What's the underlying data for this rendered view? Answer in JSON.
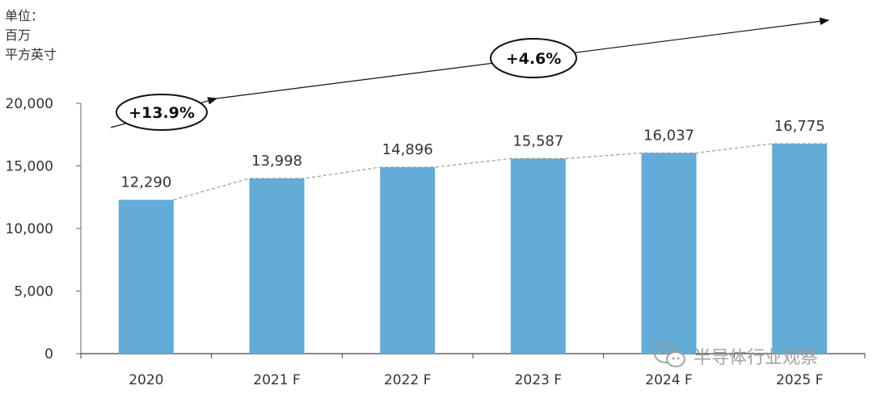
{
  "unit_label": [
    "单位：",
    "百万",
    "平方英寸"
  ],
  "watermark": {
    "text": "半导体行业观察",
    "icon": "wechat-icon"
  },
  "chart_data": {
    "type": "bar",
    "title": "",
    "xlabel": "",
    "ylabel": "",
    "categories": [
      "2020",
      "2021 F",
      "2022 F",
      "2023 F",
      "2024 F",
      "2025 F"
    ],
    "values": [
      12290,
      13998,
      14896,
      15587,
      16037,
      16775
    ],
    "value_labels": [
      "12,290",
      "13,998",
      "14,896",
      "15,587",
      "16,037",
      "16,775"
    ],
    "ylim": [
      0,
      20000
    ],
    "yticks": [
      0,
      5000,
      10000,
      15000,
      20000
    ],
    "ytick_labels": [
      "0",
      "5,000",
      "10,000",
      "15,000",
      "20,000"
    ],
    "grid": false,
    "bar_color": "#62acd7",
    "trend_line": {
      "style": "dashed",
      "color": "#999999"
    },
    "growth_annotations": [
      {
        "label": "+13.9%",
        "from": "2020",
        "to": "2021 F"
      },
      {
        "label": "+4.6%",
        "from": "2021 F",
        "to": "2025 F"
      }
    ]
  }
}
